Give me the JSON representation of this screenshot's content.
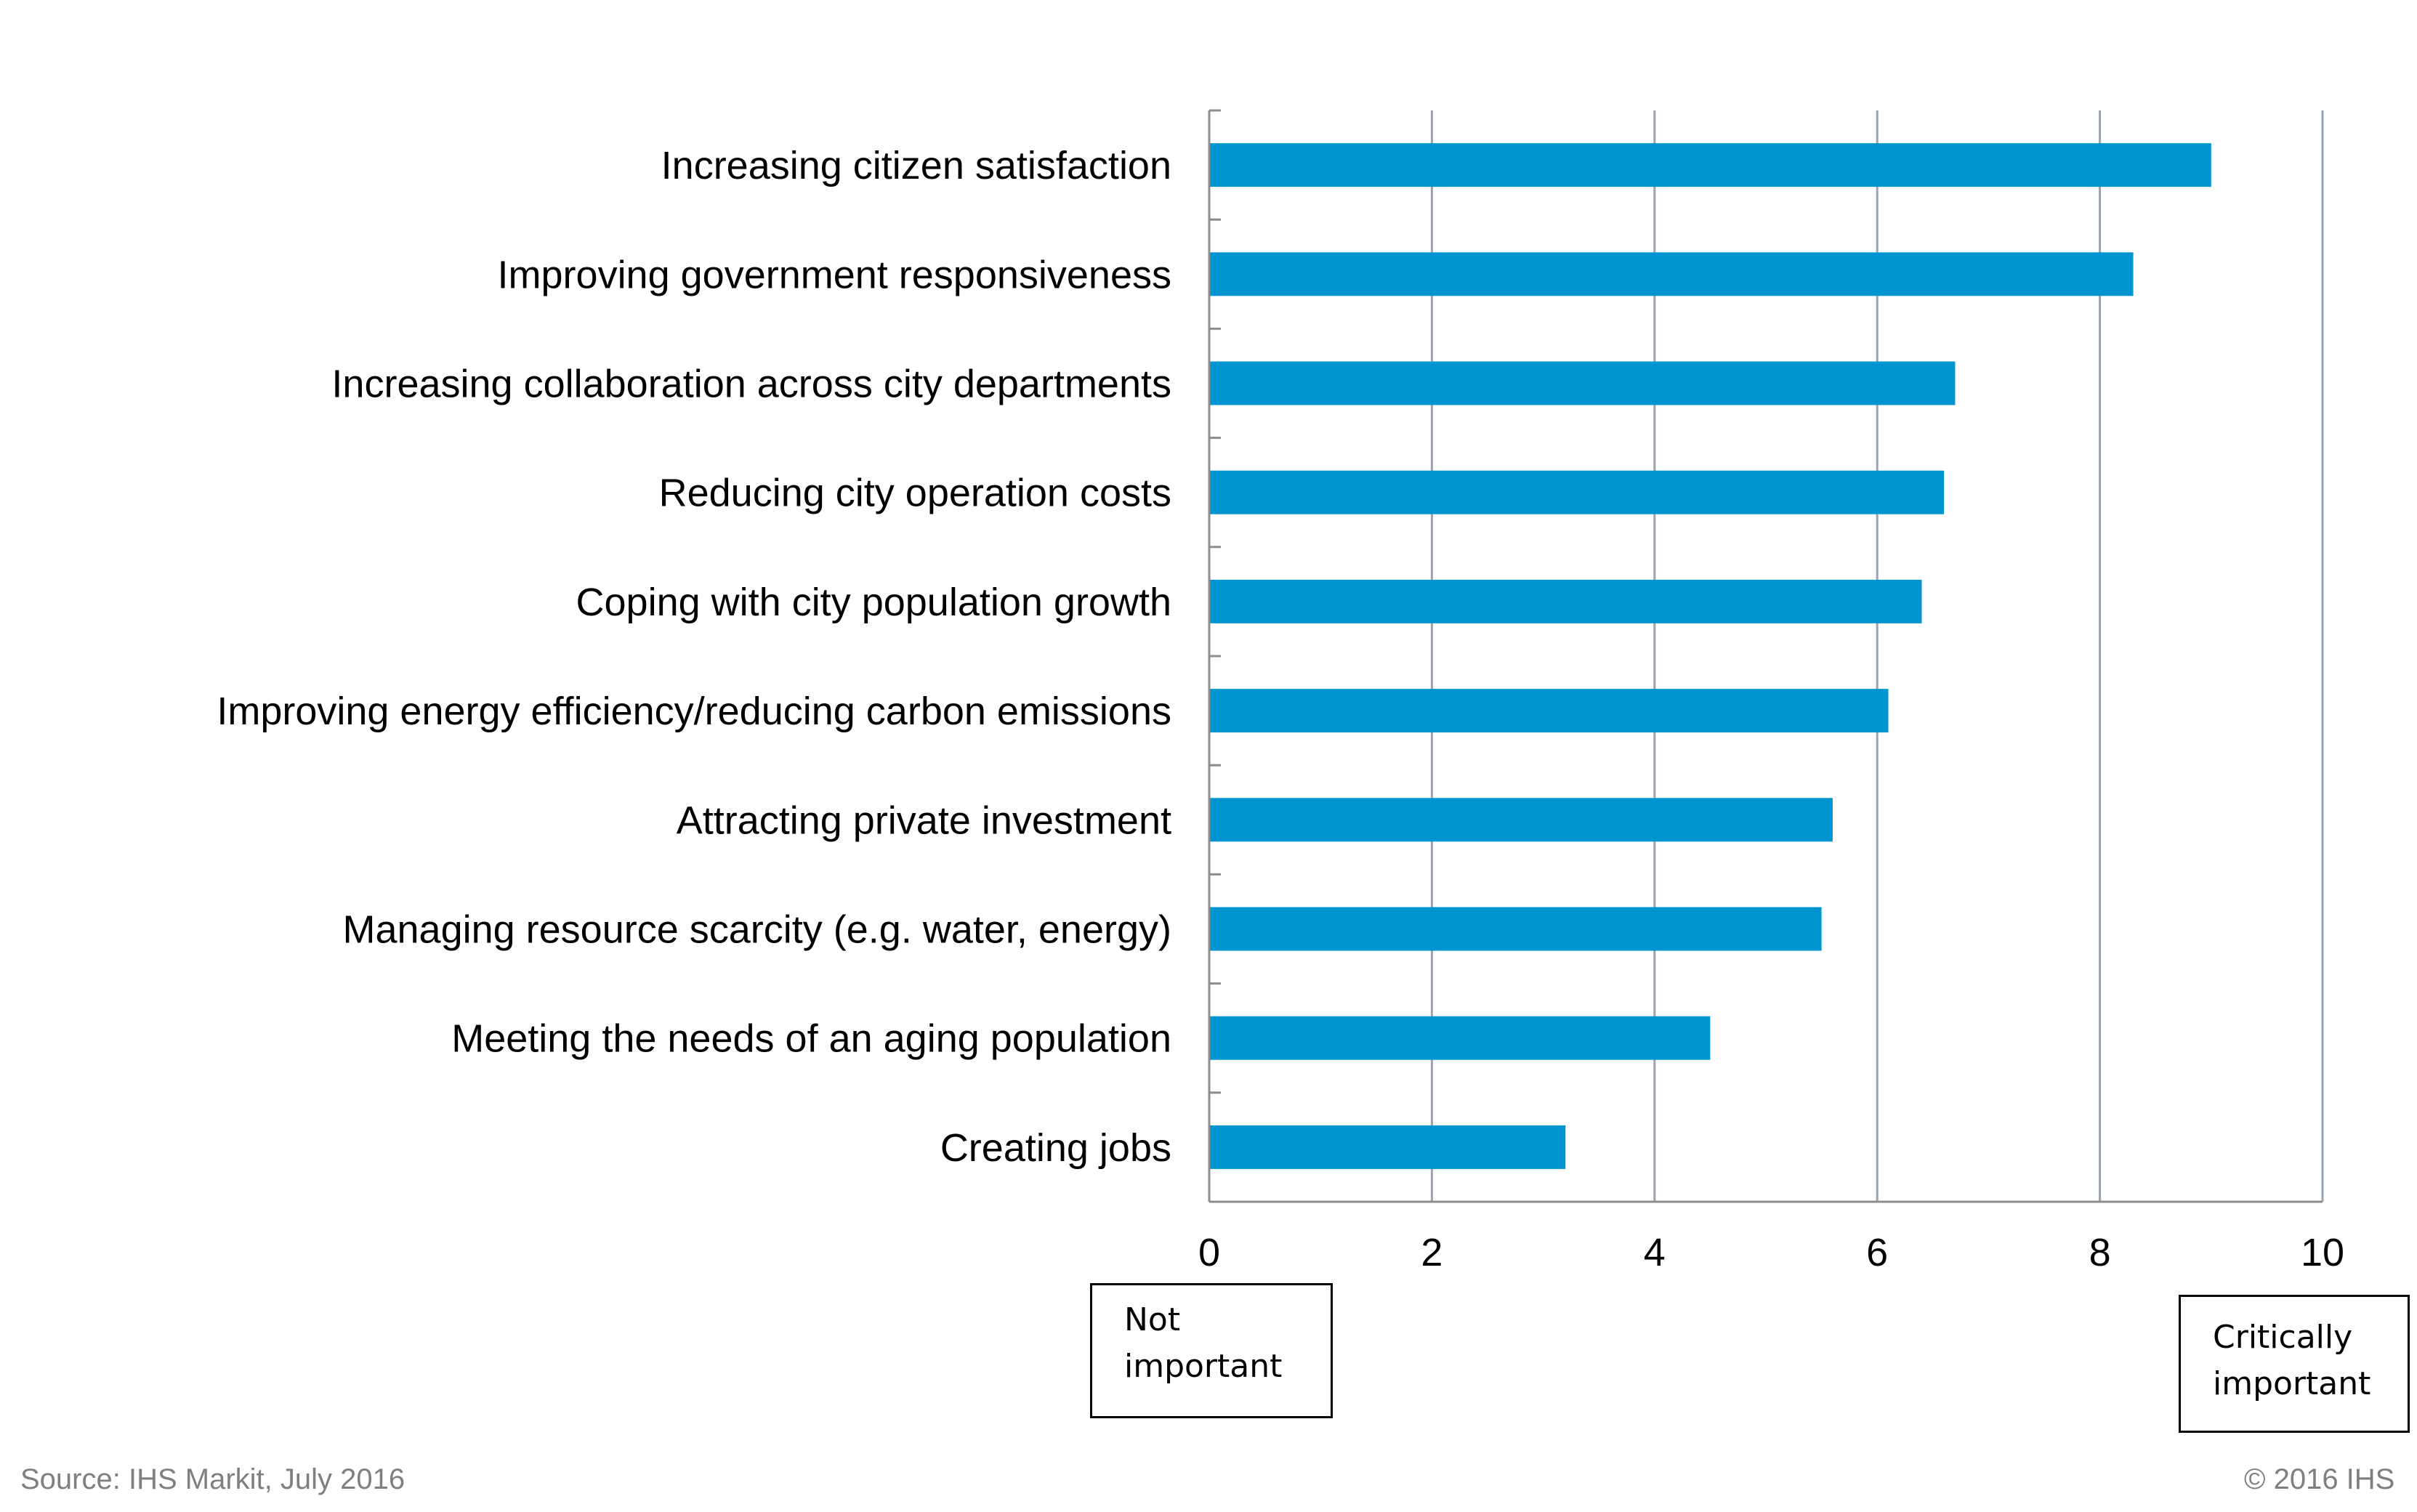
{
  "chart_data": {
    "type": "bar",
    "orientation": "horizontal",
    "categories": [
      "Increasing citizen satisfaction",
      "Improving government responsiveness",
      "Increasing collaboration across city departments",
      "Reducing city operation costs",
      "Coping with city population growth",
      "Improving energy efficiency/reducing carbon emissions",
      "Attracting private investment",
      "Managing resource scarcity (e.g. water, energy)",
      "Meeting the needs of an aging population",
      "Creating jobs"
    ],
    "values": [
      9.0,
      8.3,
      6.7,
      6.6,
      6.4,
      6.1,
      5.6,
      5.5,
      4.5,
      3.2
    ],
    "xlim": [
      0,
      10
    ],
    "xticks": [
      "0",
      "2",
      "4",
      "6",
      "8",
      "10"
    ],
    "grid": "vertical",
    "bar_color": "#0095D0",
    "grid_color": "#9aa4b0",
    "axis_color": "#8c8c8c"
  },
  "scale_notes": {
    "low": [
      "Not",
      "important"
    ],
    "high": [
      "Critically",
      "important"
    ]
  },
  "footer": {
    "source": "Source: IHS Markit, July 2016",
    "copyright": "© 2016 IHS"
  }
}
